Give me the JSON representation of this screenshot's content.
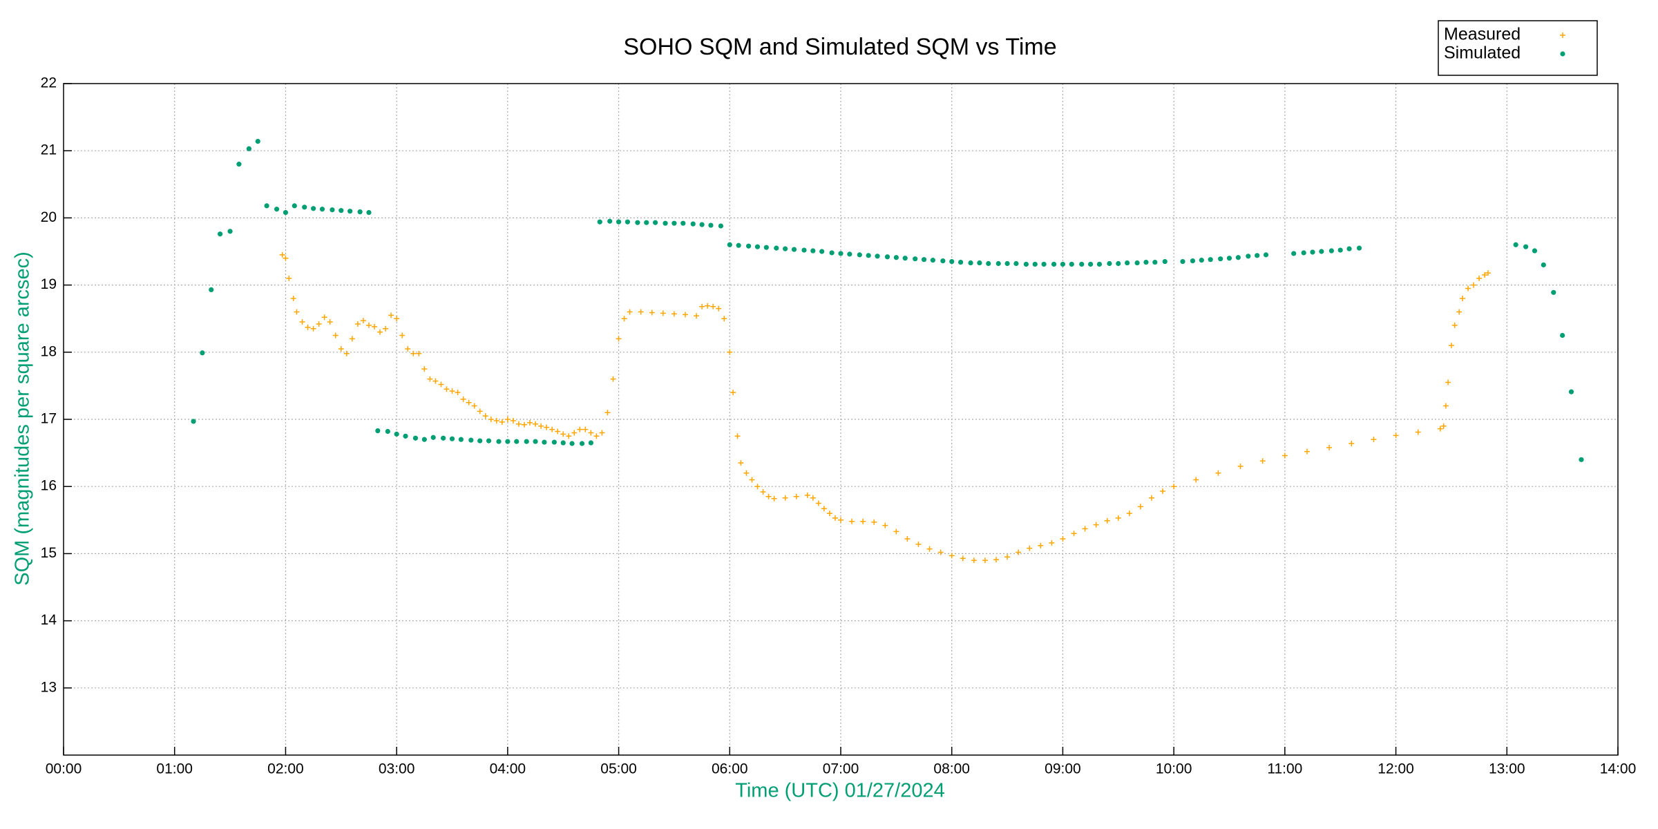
{
  "chart_data": {
    "type": "scatter",
    "title": "SOHO SQM and Simulated SQM vs Time",
    "x_label": "Time (UTC)   01/27/2024",
    "y_label": "SQM (magnitudes per square arcsec)",
    "xlim": [
      0,
      14
    ],
    "xticks": [
      {
        "value": 0,
        "label": "00:00"
      },
      {
        "value": 1,
        "label": "01:00"
      },
      {
        "value": 2,
        "label": "02:00"
      },
      {
        "value": 3,
        "label": "03:00"
      },
      {
        "value": 4,
        "label": "04:00"
      },
      {
        "value": 5,
        "label": "05:00"
      },
      {
        "value": 6,
        "label": "06:00"
      },
      {
        "value": 7,
        "label": "07:00"
      },
      {
        "value": 8,
        "label": "08:00"
      },
      {
        "value": 9,
        "label": "09:00"
      },
      {
        "value": 10,
        "label": "10:00"
      },
      {
        "value": 11,
        "label": "11:00"
      },
      {
        "value": 12,
        "label": "12:00"
      },
      {
        "value": 13,
        "label": "13:00"
      },
      {
        "value": 14,
        "label": "14:00"
      }
    ],
    "ylim": [
      12,
      22
    ],
    "yticks": [
      13,
      14,
      15,
      16,
      17,
      18,
      19,
      20,
      21,
      22
    ],
    "grid": true,
    "legend": "top-right",
    "series": [
      {
        "name": "Measured",
        "color": "#ffa500",
        "marker": "plus",
        "x": [
          1.97,
          2.0,
          2.03,
          2.07,
          2.1,
          2.15,
          2.2,
          2.25,
          2.3,
          2.35,
          2.4,
          2.45,
          2.5,
          2.55,
          2.6,
          2.65,
          2.7,
          2.75,
          2.8,
          2.85,
          2.9,
          2.95,
          3.0,
          3.05,
          3.1,
          3.15,
          3.2,
          3.25,
          3.3,
          3.35,
          3.4,
          3.45,
          3.5,
          3.55,
          3.6,
          3.65,
          3.7,
          3.75,
          3.8,
          3.85,
          3.9,
          3.95,
          4.0,
          4.05,
          4.1,
          4.15,
          4.2,
          4.25,
          4.3,
          4.35,
          4.4,
          4.45,
          4.5,
          4.55,
          4.6,
          4.65,
          4.7,
          4.75,
          4.8,
          4.85,
          4.9,
          4.95,
          5.0,
          5.05,
          5.1,
          5.2,
          5.3,
          5.4,
          5.5,
          5.6,
          5.7,
          5.75,
          5.8,
          5.85,
          5.9,
          5.95,
          6.0,
          6.03,
          6.07,
          6.1,
          6.15,
          6.2,
          6.25,
          6.3,
          6.35,
          6.4,
          6.5,
          6.6,
          6.7,
          6.75,
          6.8,
          6.85,
          6.9,
          6.95,
          7.0,
          7.1,
          7.2,
          7.3,
          7.4,
          7.5,
          7.6,
          7.7,
          7.8,
          7.9,
          8.0,
          8.1,
          8.2,
          8.3,
          8.4,
          8.5,
          8.6,
          8.7,
          8.8,
          8.9,
          9.0,
          9.1,
          9.2,
          9.3,
          9.4,
          9.5,
          9.6,
          9.7,
          9.8,
          9.9,
          10.0,
          10.2,
          10.4,
          10.6,
          10.8,
          11.0,
          11.2,
          11.4,
          11.6,
          11.8,
          12.0,
          12.2,
          12.4,
          12.43,
          12.45,
          12.47,
          12.5,
          12.53,
          12.57,
          12.6,
          12.65,
          12.7,
          12.75,
          12.8,
          12.83
        ],
        "values": [
          19.45,
          19.4,
          19.1,
          18.8,
          18.6,
          18.45,
          18.37,
          18.35,
          18.42,
          18.52,
          18.45,
          18.25,
          18.05,
          17.98,
          18.2,
          18.42,
          18.47,
          18.4,
          18.38,
          18.3,
          18.35,
          18.55,
          18.5,
          18.25,
          18.05,
          17.98,
          17.98,
          17.75,
          17.6,
          17.57,
          17.52,
          17.45,
          17.42,
          17.4,
          17.3,
          17.25,
          17.2,
          17.12,
          17.05,
          17.0,
          16.98,
          16.96,
          17.0,
          16.98,
          16.93,
          16.92,
          16.95,
          16.93,
          16.9,
          16.88,
          16.85,
          16.82,
          16.78,
          16.75,
          16.8,
          16.85,
          16.85,
          16.8,
          16.75,
          16.8,
          17.1,
          17.6,
          18.2,
          18.5,
          18.6,
          18.6,
          18.59,
          18.58,
          18.57,
          18.56,
          18.54,
          18.68,
          18.69,
          18.68,
          18.65,
          18.5,
          18.0,
          17.4,
          16.75,
          16.35,
          16.2,
          16.1,
          16.0,
          15.92,
          15.85,
          15.82,
          15.83,
          15.85,
          15.87,
          15.83,
          15.75,
          15.67,
          15.6,
          15.53,
          15.5,
          15.48,
          15.48,
          15.47,
          15.42,
          15.33,
          15.22,
          15.14,
          15.07,
          15.02,
          14.97,
          14.93,
          14.9,
          14.9,
          14.91,
          14.95,
          15.02,
          15.08,
          15.12,
          15.16,
          15.22,
          15.3,
          15.37,
          15.43,
          15.49,
          15.53,
          15.6,
          15.7,
          15.83,
          15.93,
          16.0,
          16.1,
          16.2,
          16.3,
          16.38,
          16.46,
          16.52,
          16.58,
          16.64,
          16.7,
          16.76,
          16.81,
          16.86,
          16.9,
          17.2,
          17.55,
          18.1,
          18.4,
          18.6,
          18.8,
          18.95,
          19.0,
          19.1,
          19.15,
          19.18
        ]
      },
      {
        "name": "Simulated",
        "color": "#009e73",
        "marker": "dot",
        "x": [
          1.17,
          1.25,
          1.33,
          1.41,
          1.5,
          1.58,
          1.67,
          1.75,
          1.83,
          1.92,
          2.0,
          2.08,
          2.17,
          2.25,
          2.33,
          2.42,
          2.5,
          2.58,
          2.67,
          2.75,
          2.83,
          2.92,
          3.0,
          3.08,
          3.17,
          3.25,
          3.33,
          3.42,
          3.5,
          3.58,
          3.67,
          3.75,
          3.83,
          3.92,
          4.0,
          4.08,
          4.17,
          4.25,
          4.33,
          4.42,
          4.5,
          4.58,
          4.67,
          4.75,
          4.83,
          4.92,
          5.0,
          5.08,
          5.17,
          5.25,
          5.33,
          5.42,
          5.5,
          5.58,
          5.67,
          5.75,
          5.83,
          5.92,
          6.0,
          6.08,
          6.17,
          6.25,
          6.33,
          6.42,
          6.5,
          6.58,
          6.67,
          6.75,
          6.83,
          6.92,
          7.0,
          7.08,
          7.17,
          7.25,
          7.33,
          7.42,
          7.5,
          7.58,
          7.67,
          7.75,
          7.83,
          7.92,
          8.0,
          8.08,
          8.17,
          8.25,
          8.33,
          8.42,
          8.5,
          8.58,
          8.67,
          8.75,
          8.83,
          8.92,
          9.0,
          9.08,
          9.17,
          9.25,
          9.33,
          9.42,
          9.5,
          9.58,
          9.67,
          9.75,
          9.83,
          9.92,
          10.08,
          10.17,
          10.25,
          10.33,
          10.42,
          10.5,
          10.58,
          10.67,
          10.75,
          10.83,
          11.08,
          11.17,
          11.25,
          11.33,
          11.42,
          11.5,
          11.58,
          11.67,
          13.08,
          13.17,
          13.25,
          13.33,
          13.42,
          13.5,
          13.58,
          13.67
        ],
        "values": [
          16.97,
          17.99,
          18.93,
          19.76,
          19.8,
          20.8,
          21.03,
          21.14,
          20.18,
          20.13,
          20.08,
          20.18,
          20.16,
          20.14,
          20.13,
          20.12,
          20.11,
          20.1,
          20.09,
          20.08,
          16.83,
          16.82,
          16.78,
          16.75,
          16.72,
          16.7,
          16.73,
          16.72,
          16.71,
          16.7,
          16.69,
          16.68,
          16.68,
          16.67,
          16.67,
          16.67,
          16.67,
          16.67,
          16.66,
          16.66,
          16.65,
          16.64,
          16.64,
          16.65,
          19.94,
          19.95,
          19.94,
          19.94,
          19.93,
          19.93,
          19.93,
          19.92,
          19.92,
          19.92,
          19.91,
          19.9,
          19.89,
          19.88,
          19.6,
          19.59,
          19.58,
          19.57,
          19.56,
          19.55,
          19.54,
          19.53,
          19.52,
          19.51,
          19.5,
          19.48,
          19.47,
          19.46,
          19.45,
          19.44,
          19.43,
          19.42,
          19.41,
          19.4,
          19.39,
          19.38,
          19.37,
          19.36,
          19.35,
          19.34,
          19.33,
          19.33,
          19.32,
          19.32,
          19.32,
          19.32,
          19.31,
          19.31,
          19.31,
          19.31,
          19.31,
          19.31,
          19.31,
          19.31,
          19.31,
          19.32,
          19.32,
          19.33,
          19.33,
          19.34,
          19.34,
          19.35,
          19.35,
          19.36,
          19.37,
          19.38,
          19.39,
          19.4,
          19.41,
          19.43,
          19.44,
          19.45,
          19.47,
          19.48,
          19.49,
          19.5,
          19.51,
          19.52,
          19.54,
          19.55,
          19.6,
          19.57,
          19.51,
          19.3,
          18.89,
          18.25,
          17.41,
          16.4
        ]
      }
    ]
  }
}
